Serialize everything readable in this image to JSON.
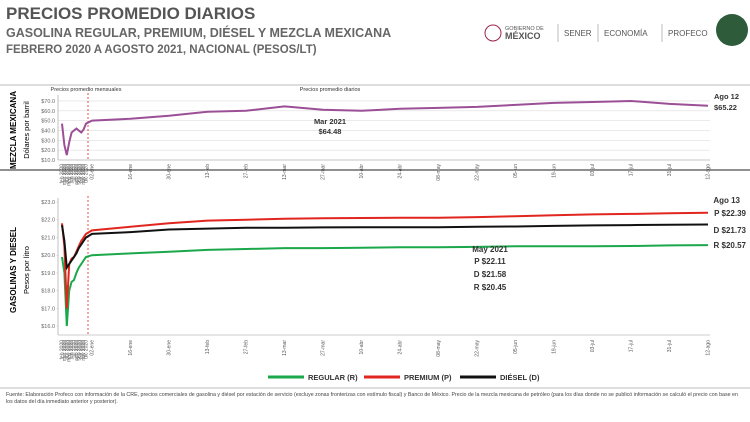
{
  "header": {
    "title": "PRECIOS PROMEDIO DIARIOS",
    "subtitle": "GASOLINA REGULAR, PREMIUM, DIÉSEL Y MEZCLA MEXICANA",
    "period": "FEBRERO 2020 A AGOSTO 2021, NACIONAL (PESOS/LT)"
  },
  "logos": [
    "GOBIERNO DE",
    "MÉXICO",
    "SENER",
    "ECONOMÍA",
    "PROFECO"
  ],
  "chart_data": [
    {
      "type": "line",
      "side_title": "MEZCLA MEXICANA",
      "y_label": "Dólares por barril",
      "categories": [
        "feb 2020",
        "mar 2020",
        "abr 2020",
        "may 2020",
        "jun 2020",
        "jul 2020",
        "ago 2020",
        "sep 2020",
        "oct 2020",
        "nov 2020",
        "dic 2020",
        "02-ene",
        "16-ene",
        "30-ene",
        "13-feb",
        "27-feb",
        "13-mar",
        "27-mar",
        "10-abr",
        "24-abr",
        "08-may",
        "22-may",
        "05-jun",
        "19-jun",
        "03-jul",
        "17-jul",
        "31-jul",
        "12-ago"
      ],
      "series": [
        {
          "name": "Mezcla mexicana",
          "color": "#9b4f96",
          "values": [
            47,
            25,
            15,
            28,
            38,
            40,
            42,
            40,
            38,
            41,
            47,
            50,
            52,
            55,
            59,
            60,
            64.48,
            61,
            60,
            62,
            63,
            64,
            66,
            68,
            69,
            70,
            67,
            65.22
          ]
        }
      ],
      "ylim": [
        10,
        72
      ],
      "yticks": [
        {
          "value": 10,
          "label": "$10.0"
        },
        {
          "value": 20,
          "label": "$20.0"
        },
        {
          "value": 30,
          "label": "$30.0"
        },
        {
          "value": 40,
          "label": "$40.0"
        },
        {
          "value": 50,
          "label": "$50.0"
        },
        {
          "value": 60,
          "label": "$60.0"
        },
        {
          "value": 70,
          "label": "$70.0"
        }
      ],
      "grid": true,
      "annotations": [
        "Precios promedio mensuales",
        "Precios promedio diarios",
        "Mar 2021",
        "$64.48",
        "Ago 12",
        "$65.22"
      ]
    },
    {
      "type": "line",
      "side_title": "GASOLINAS Y DIESEL",
      "y_label": "Pesos por litro",
      "categories": [
        "feb 2020",
        "mar 2020",
        "abr 2020",
        "may 2020",
        "jun 2020",
        "jul 2020",
        "ago 2020",
        "sep 2020",
        "oct 2020",
        "nov 2020",
        "dic 2020",
        "02-ene",
        "16-ene",
        "30-ene",
        "13-feb",
        "27-feb",
        "13-mar",
        "27-mar",
        "10-abr",
        "24-abr",
        "08-may",
        "22-may",
        "05-jun",
        "19-jun",
        "03-jul",
        "17-jul",
        "31-jul",
        "12-ago"
      ],
      "series": [
        {
          "name": "REGULAR (R)",
          "color": "#1aa84b",
          "values": [
            19.9,
            19.0,
            16.0,
            18.0,
            18.5,
            18.6,
            19.0,
            19.3,
            19.5,
            19.7,
            19.9,
            20.0,
            20.1,
            20.2,
            20.3,
            20.35,
            20.4,
            20.4,
            20.42,
            20.45,
            20.45,
            20.47,
            20.5,
            20.5,
            20.5,
            20.52,
            20.55,
            20.57
          ]
        },
        {
          "name": "PREMIUM (P)",
          "color": "#e0261f",
          "values": [
            21.8,
            20.5,
            17.0,
            19.5,
            19.8,
            19.9,
            20.2,
            20.5,
            20.8,
            21.0,
            21.2,
            21.4,
            21.6,
            21.8,
            21.95,
            22.0,
            22.05,
            22.08,
            22.1,
            22.11,
            22.11,
            22.15,
            22.2,
            22.25,
            22.3,
            22.33,
            22.36,
            22.39
          ]
        },
        {
          "name": "DIÉSEL (D)",
          "color": "#111111",
          "values": [
            21.7,
            20.8,
            19.3,
            19.5,
            19.7,
            19.9,
            20.1,
            20.4,
            20.6,
            20.8,
            21.0,
            21.2,
            21.3,
            21.45,
            21.5,
            21.55,
            21.55,
            21.57,
            21.58,
            21.58,
            21.58,
            21.6,
            21.62,
            21.65,
            21.68,
            21.7,
            21.72,
            21.73
          ]
        }
      ],
      "ylim": [
        15.5,
        23
      ],
      "yticks": [
        {
          "value": 16,
          "label": "$16.0"
        },
        {
          "value": 17,
          "label": "$17.0"
        },
        {
          "value": 18,
          "label": "$18.0"
        },
        {
          "value": 19,
          "label": "$19.0"
        },
        {
          "value": 20,
          "label": "$20.0"
        },
        {
          "value": 21,
          "label": "$21.0"
        },
        {
          "value": 22,
          "label": "$22.0"
        },
        {
          "value": 23,
          "label": "$23.0"
        }
      ],
      "grid": false,
      "annotations": [
        "Ago 13",
        "P $22.39",
        "D $21.73",
        "R $20.57",
        "May 2021",
        "P $22.11",
        "D $21.58",
        "R $20.45"
      ]
    }
  ],
  "footnote": "Fuente: Elaboración Profeco con información de la CRE, precios comerciales de gasolina y diésel por estación de servicio (excluye zonas fronterizas con estímulo fiscal) y Banco de México. Precio de la mezcla mexicana de petróleo (para los días donde no se publicó información se calculó el precio con base en los datos del día inmediato anterior y posterior)."
}
